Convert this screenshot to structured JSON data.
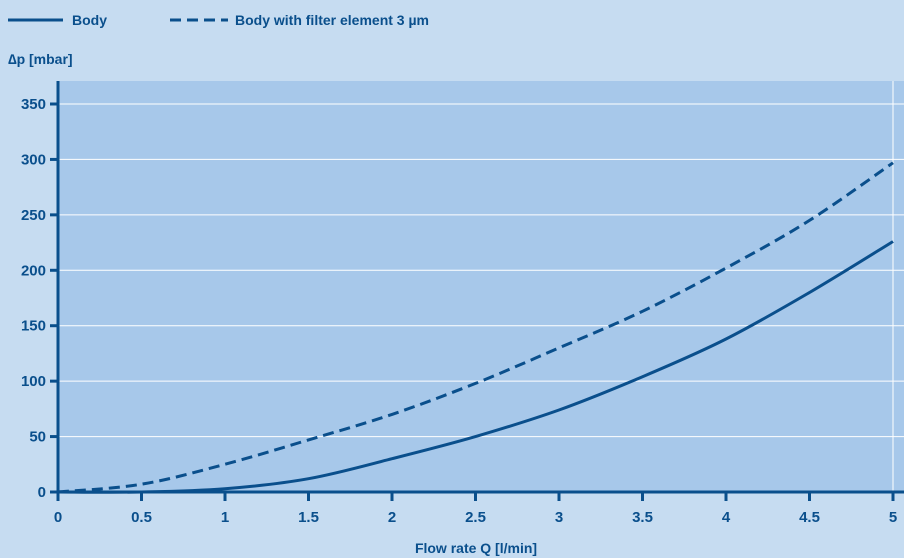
{
  "chart_data": {
    "type": "line",
    "title": "",
    "xlabel": "Flow rate Q [l/min]",
    "ylabel": "∆p [mbar]",
    "xlim": [
      0,
      5
    ],
    "ylim": [
      0,
      370
    ],
    "x_ticks": [
      0,
      0.5,
      1,
      1.5,
      2,
      2.5,
      3,
      3.5,
      4,
      4.5,
      5
    ],
    "x_tick_labels": [
      "0",
      "0.5",
      "1",
      "1.5",
      "2",
      "2.5",
      "3",
      "3.5",
      "4",
      "4.5",
      "5"
    ],
    "y_ticks": [
      0,
      50,
      100,
      150,
      200,
      250,
      300,
      350
    ],
    "y_tick_labels": [
      "0",
      "50",
      "100",
      "150",
      "200",
      "250",
      "300",
      "350"
    ],
    "grid": "horizontal",
    "legend_position": "top-left",
    "series": [
      {
        "name": "Body",
        "style": "solid",
        "color": "#0a4f8c",
        "x": [
          0,
          0.5,
          1,
          1.5,
          2,
          2.5,
          3,
          3.5,
          4,
          4.5,
          5
        ],
        "y": [
          0,
          0,
          3,
          12,
          30,
          50,
          74,
          104,
          138,
          180,
          226
        ]
      },
      {
        "name": "Body with filter element 3 µm",
        "style": "dashed",
        "color": "#0a4f8c",
        "x": [
          0,
          0.5,
          1,
          1.5,
          2,
          2.5,
          3,
          3.5,
          4,
          4.5,
          5
        ],
        "y": [
          0,
          7,
          25,
          47,
          70,
          98,
          130,
          163,
          202,
          245,
          297
        ]
      }
    ]
  },
  "colors": {
    "page_background": "#c6dcf1",
    "plot_background": "#a7c8ea",
    "line": "#0a4f8c",
    "grid": "#ffffff"
  }
}
